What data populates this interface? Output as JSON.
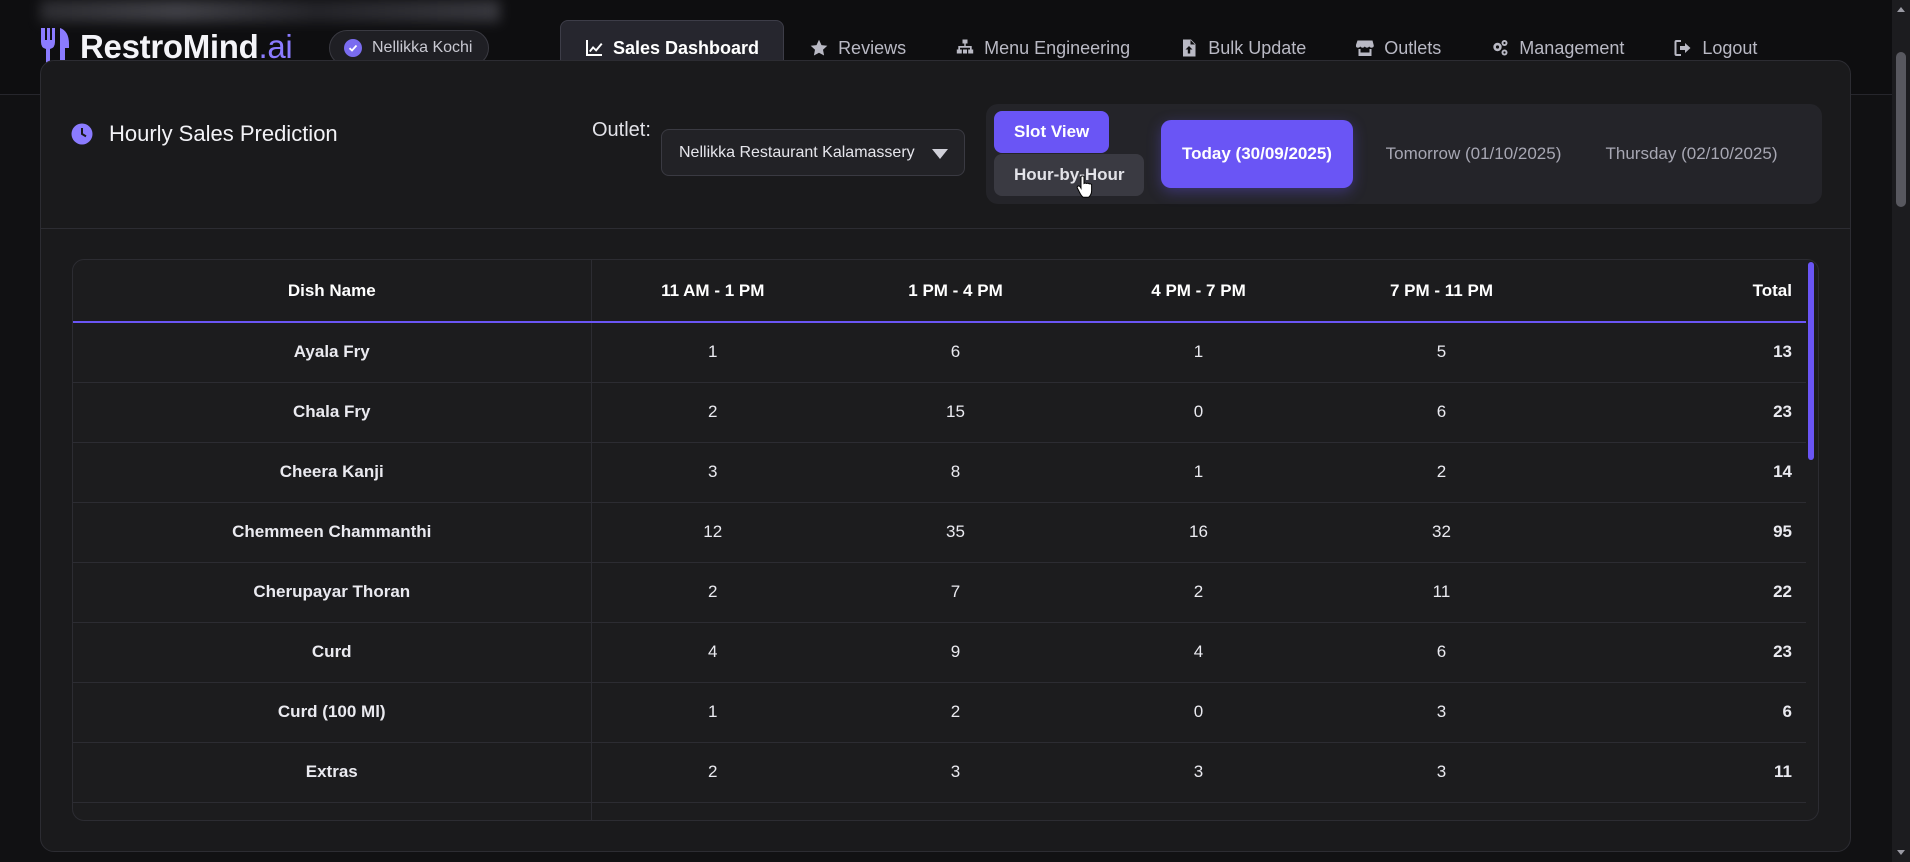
{
  "app": {
    "brand_main": "RestroMind",
    "brand_accent": ".ai",
    "accent_color": "#6a55f5",
    "outlet_badge": "Nellikka Kochi"
  },
  "nav": {
    "items": [
      {
        "label": "Sales Dashboard",
        "icon": "chart-line-icon",
        "active": true
      },
      {
        "label": "Reviews",
        "icon": "star-icon"
      },
      {
        "label": "Menu Engineering",
        "icon": "sitemap-icon"
      },
      {
        "label": "Bulk Update",
        "icon": "file-upload-icon"
      },
      {
        "label": "Outlets",
        "icon": "store-icon"
      },
      {
        "label": "Management",
        "icon": "gears-icon"
      },
      {
        "label": "Logout",
        "icon": "logout-icon"
      }
    ]
  },
  "card": {
    "title": "Hourly Sales Prediction",
    "title_icon": "clock-icon",
    "outlet_label": "Outlet:",
    "outlet_value": "Nellikka Restaurant Kalamassery",
    "views": {
      "slot": "Slot View",
      "hour": "Hour-by-Hour"
    },
    "days": [
      {
        "label": "Today (30/09/2025)",
        "active": true
      },
      {
        "label": "Tomorrow (01/10/2025)"
      },
      {
        "label": "Thursday (02/10/2025)"
      }
    ]
  },
  "table": {
    "headers": [
      "Dish Name",
      "11 AM - 1 PM",
      "1 PM - 4 PM",
      "4 PM - 7 PM",
      "7 PM - 11 PM",
      "Total"
    ],
    "rows": [
      [
        "Ayala Fry",
        "1",
        "6",
        "1",
        "5",
        "13"
      ],
      [
        "Chala Fry",
        "2",
        "15",
        "0",
        "6",
        "23"
      ],
      [
        "Cheera Kanji",
        "3",
        "8",
        "1",
        "2",
        "14"
      ],
      [
        "Chemmeen Chammanthi",
        "12",
        "35",
        "16",
        "32",
        "95"
      ],
      [
        "Cherupayar Thoran",
        "2",
        "7",
        "2",
        "11",
        "22"
      ],
      [
        "Curd",
        "4",
        "9",
        "4",
        "6",
        "23"
      ],
      [
        "Curd (100 Ml)",
        "1",
        "2",
        "0",
        "3",
        "6"
      ],
      [
        "Extras",
        "2",
        "3",
        "3",
        "3",
        "11"
      ],
      [
        "",
        "",
        "",
        "",
        "",
        ""
      ]
    ]
  }
}
